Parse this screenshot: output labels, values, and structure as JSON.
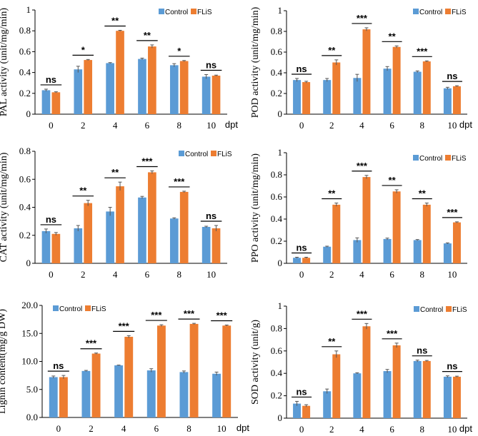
{
  "colors": {
    "control": "#5B9BD5",
    "flis": "#ED7D31"
  },
  "chart_data": [
    {
      "type": "bar",
      "id": "pal",
      "ylabel": "PAL activity (unit/mg/min)",
      "xunit": "dpt",
      "categories": [
        "0",
        "2",
        "4",
        "6",
        "8",
        "10"
      ],
      "ylim": [
        0,
        1
      ],
      "yticks": [
        0,
        0.2,
        0.4,
        0.6,
        0.8,
        1
      ],
      "tick_decimals": 1,
      "legend": [
        "Control",
        "FLiS"
      ],
      "series": [
        {
          "name": "Control",
          "values": [
            0.23,
            0.43,
            0.49,
            0.53,
            0.47,
            0.36
          ],
          "errors": [
            0.01,
            0.03,
            0.005,
            0.008,
            0.015,
            0.02
          ]
        },
        {
          "name": "FLiS",
          "values": [
            0.21,
            0.52,
            0.8,
            0.65,
            0.51,
            0.37
          ],
          "errors": [
            0.005,
            0.005,
            0.005,
            0.015,
            0.005,
            0.005
          ]
        }
      ],
      "significance": [
        "ns",
        "*",
        "**",
        "**",
        "*",
        "ns"
      ]
    },
    {
      "type": "bar",
      "id": "pod",
      "ylabel": "POD activity (unit/mg/min)",
      "xunit": "dpt",
      "categories": [
        "0",
        "2",
        "4",
        "6",
        "8",
        "10"
      ],
      "ylim": [
        0,
        1
      ],
      "yticks": [
        0,
        0.2,
        0.4,
        0.6,
        0.8,
        1
      ],
      "tick_decimals": 1,
      "legend": [
        "Control",
        "FLiS"
      ],
      "series": [
        {
          "name": "Control",
          "values": [
            0.33,
            0.33,
            0.35,
            0.44,
            0.41,
            0.25
          ],
          "errors": [
            0.015,
            0.015,
            0.035,
            0.02,
            0.008,
            0.01
          ]
        },
        {
          "name": "FLiS",
          "values": [
            0.31,
            0.5,
            0.82,
            0.65,
            0.51,
            0.27
          ],
          "errors": [
            0.008,
            0.025,
            0.015,
            0.01,
            0.005,
            0.005
          ]
        }
      ],
      "significance": [
        "ns",
        "**",
        "***",
        "**",
        "***",
        "ns"
      ]
    },
    {
      "type": "bar",
      "id": "cat",
      "ylabel": "CAT activity (unit/mg/min)",
      "xunit": "",
      "categories": [
        "0",
        "2",
        "4",
        "6",
        "8",
        "10"
      ],
      "ylim": [
        0,
        0.8
      ],
      "yticks": [
        0,
        0.2,
        0.4,
        0.6,
        0.8
      ],
      "tick_decimals": 1,
      "legend": [
        "Control",
        "FLiS"
      ],
      "series": [
        {
          "name": "Control",
          "values": [
            0.23,
            0.25,
            0.37,
            0.47,
            0.32,
            0.26
          ],
          "errors": [
            0.015,
            0.02,
            0.03,
            0.008,
            0.005,
            0.005
          ]
        },
        {
          "name": "FLiS",
          "values": [
            0.21,
            0.43,
            0.55,
            0.65,
            0.51,
            0.25
          ],
          "errors": [
            0.01,
            0.02,
            0.03,
            0.01,
            0.005,
            0.02
          ]
        }
      ],
      "significance": [
        "ns",
        "**",
        "**",
        "***",
        "***",
        "ns"
      ]
    },
    {
      "type": "bar",
      "id": "ppo",
      "ylabel": "PPO activity (unit/mg/min)",
      "xunit": "",
      "categories": [
        "0",
        "2",
        "4",
        "6",
        "8",
        "10"
      ],
      "ylim": [
        0,
        1
      ],
      "yticks": [
        0,
        0.2,
        0.4,
        0.6,
        0.8,
        1
      ],
      "tick_decimals": 1,
      "legend": [
        "Control",
        "FLiS"
      ],
      "series": [
        {
          "name": "Control",
          "values": [
            0.05,
            0.15,
            0.21,
            0.22,
            0.21,
            0.18
          ],
          "errors": [
            0.005,
            0.005,
            0.02,
            0.008,
            0.005,
            0.005
          ]
        },
        {
          "name": "FLiS",
          "values": [
            0.05,
            0.53,
            0.78,
            0.65,
            0.53,
            0.37
          ],
          "errors": [
            0.005,
            0.015,
            0.015,
            0.015,
            0.015,
            0.005
          ]
        }
      ],
      "significance": [
        "ns",
        "**",
        "***",
        "**",
        "**",
        "***"
      ]
    },
    {
      "type": "bar",
      "id": "lignin",
      "ylabel": "Lignin content(mg/g DW)",
      "xunit": "dpt",
      "categories": [
        "0",
        "2",
        "4",
        "6",
        "8",
        "10"
      ],
      "ylim": [
        0,
        20
      ],
      "yticks": [
        0,
        5,
        10,
        15,
        20
      ],
      "tick_decimals": 1,
      "legend": [
        "Control",
        "FLiS"
      ],
      "series": [
        {
          "name": "Control",
          "values": [
            7.2,
            8.3,
            9.3,
            8.4,
            8.1,
            7.8
          ],
          "errors": [
            0.2,
            0.1,
            0.05,
            0.3,
            0.2,
            0.3
          ]
        },
        {
          "name": "FLiS",
          "values": [
            7.2,
            11.4,
            14.4,
            16.4,
            16.7,
            16.4
          ],
          "errors": [
            0.3,
            0.1,
            0.2,
            0.15,
            0.1,
            0.1
          ]
        }
      ],
      "significance": [
        "ns",
        "***",
        "***",
        "***",
        "***",
        "***"
      ]
    },
    {
      "type": "bar",
      "id": "sod",
      "ylabel": "SOD activity (unit/g)",
      "xunit": "dpt",
      "categories": [
        "0",
        "2",
        "4",
        "6",
        "8",
        "10"
      ],
      "ylim": [
        0,
        1
      ],
      "yticks": [
        0,
        0.2,
        0.4,
        0.6,
        0.8,
        1
      ],
      "tick_decimals": 1,
      "legend": [
        "Control",
        "FLiS"
      ],
      "series": [
        {
          "name": "Control",
          "values": [
            0.13,
            0.24,
            0.4,
            0.42,
            0.51,
            0.37
          ],
          "errors": [
            0.02,
            0.02,
            0.005,
            0.015,
            0.008,
            0.008
          ]
        },
        {
          "name": "FLiS",
          "values": [
            0.11,
            0.57,
            0.82,
            0.65,
            0.51,
            0.37
          ],
          "errors": [
            0.01,
            0.03,
            0.025,
            0.02,
            0.005,
            0.005
          ]
        }
      ],
      "significance": [
        "ns",
        "**",
        "***",
        "***",
        "ns",
        "ns"
      ]
    }
  ]
}
